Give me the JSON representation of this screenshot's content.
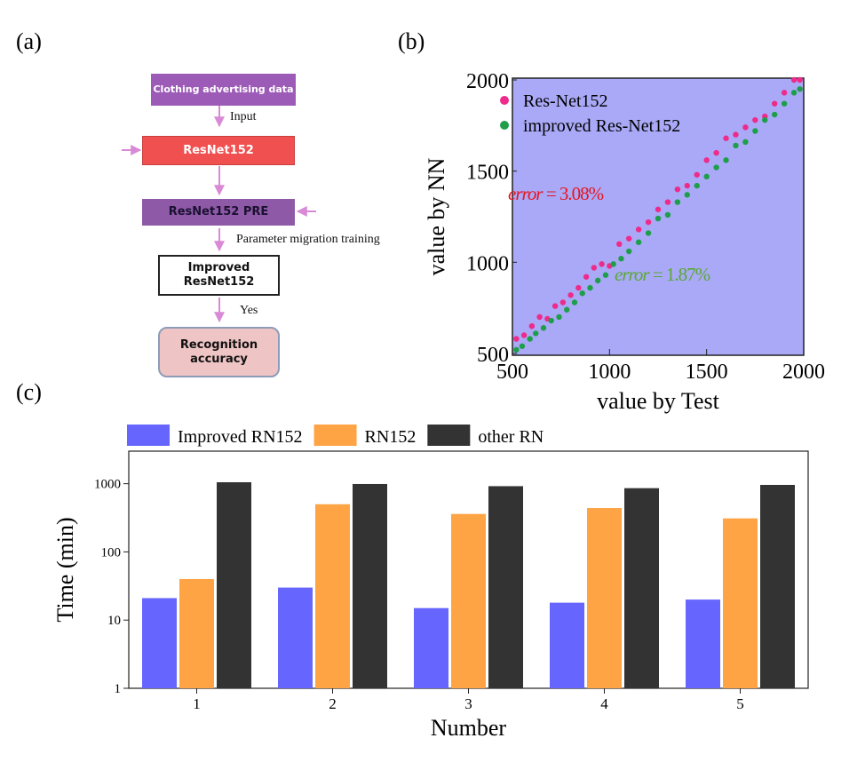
{
  "panel_labels": [
    "(a)",
    "(b)",
    "(c)"
  ],
  "diagram": {
    "nodes": [
      {
        "label": "Clothing advertising data"
      },
      {
        "label": "ResNet152"
      },
      {
        "label": "ResNet152 PRE"
      },
      {
        "label": "Improved ResNet152"
      },
      {
        "label": "Recognition accuracy"
      }
    ],
    "edges": [
      {
        "label": "Input"
      },
      {
        "label": "Parameter migration training"
      },
      {
        "label": "Yes"
      }
    ]
  },
  "chart_data": [
    {
      "type": "scatter",
      "xlabel": "value by Test",
      "ylabel": "value by NN",
      "xlim": [
        500,
        2000
      ],
      "ylim": [
        500,
        2000
      ],
      "xticks": [
        500,
        1000,
        1500,
        2000
      ],
      "yticks": [
        500,
        1000,
        1500,
        2000
      ],
      "background": "#a9a9f7",
      "legend": "upper left",
      "series": [
        {
          "name": "Res-Net152",
          "color": "#ee2a8a",
          "x": [
            520,
            560,
            600,
            640,
            680,
            720,
            760,
            800,
            840,
            880,
            920,
            960,
            1000,
            1050,
            1100,
            1150,
            1200,
            1250,
            1300,
            1350,
            1400,
            1450,
            1500,
            1550,
            1600,
            1650,
            1700,
            1750,
            1800,
            1850,
            1900,
            1950,
            1980
          ],
          "values": [
            580,
            600,
            650,
            700,
            690,
            760,
            780,
            820,
            860,
            920,
            970,
            990,
            980,
            1100,
            1130,
            1180,
            1220,
            1290,
            1330,
            1400,
            1420,
            1480,
            1560,
            1600,
            1680,
            1700,
            1740,
            1780,
            1800,
            1870,
            1930,
            2000,
            2000
          ]
        },
        {
          "name": "improved Res-Net152",
          "color": "#1e9e4a",
          "x": [
            520,
            550,
            590,
            620,
            660,
            700,
            740,
            780,
            820,
            860,
            900,
            940,
            980,
            1020,
            1060,
            1100,
            1150,
            1200,
            1250,
            1300,
            1350,
            1400,
            1450,
            1500,
            1550,
            1600,
            1650,
            1700,
            1750,
            1800,
            1850,
            1900,
            1950,
            1980
          ],
          "values": [
            520,
            540,
            580,
            610,
            640,
            680,
            700,
            740,
            780,
            830,
            860,
            900,
            930,
            990,
            1020,
            1060,
            1110,
            1160,
            1240,
            1260,
            1330,
            1370,
            1420,
            1470,
            1520,
            1560,
            1640,
            1660,
            1720,
            1780,
            1810,
            1870,
            1930,
            1950
          ]
        }
      ],
      "annotations": [
        {
          "text": "error = 3.08%",
          "color": "#e8141e"
        },
        {
          "text": "error = 1.87%",
          "color": "#5aa832"
        }
      ]
    },
    {
      "type": "bar",
      "xlabel": "Number",
      "ylabel": "Time (min)",
      "categories": [
        "1",
        "2",
        "3",
        "4",
        "5"
      ],
      "log_y": true,
      "ylim": [
        1,
        3000
      ],
      "yticks": [
        1,
        10,
        100,
        1000
      ],
      "legend": "top",
      "series": [
        {
          "name": "Improved RN152",
          "color": "#6666fe",
          "values": [
            21,
            30,
            15,
            18,
            20
          ]
        },
        {
          "name": "RN152",
          "color": "#fea444",
          "values": [
            40,
            500,
            360,
            440,
            310
          ]
        },
        {
          "name": "other RN",
          "color": "#333333",
          "values": [
            1050,
            990,
            920,
            860,
            960
          ]
        }
      ]
    }
  ]
}
